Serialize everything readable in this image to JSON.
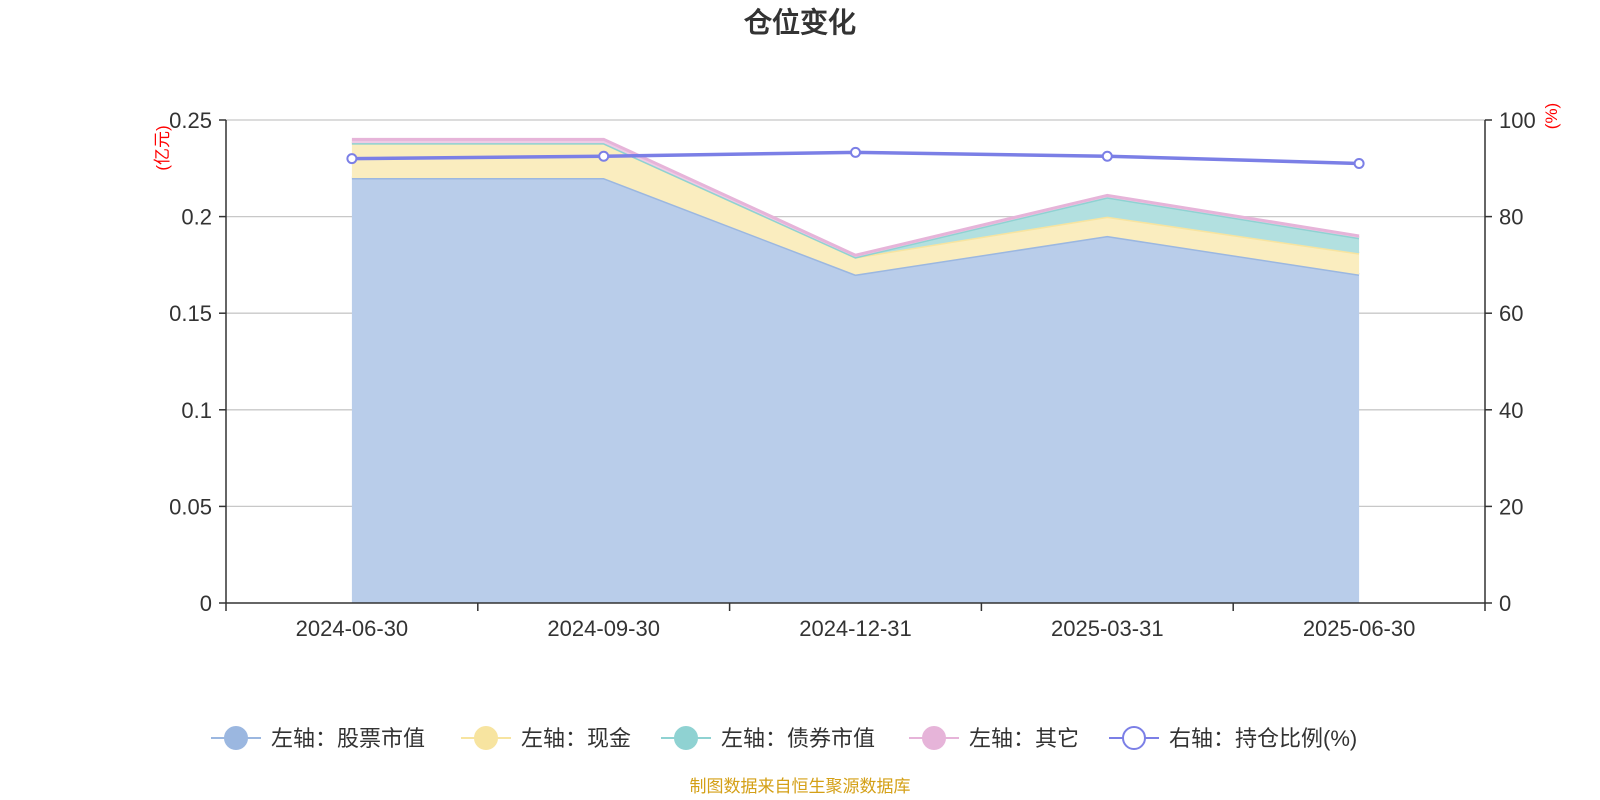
{
  "chart_data": {
    "type": "area",
    "title": "仓位变化",
    "categories": [
      "2024-06-30",
      "2024-09-30",
      "2024-12-31",
      "2025-03-31",
      "2025-06-30"
    ],
    "left_axis": {
      "unit_label": "(亿元)",
      "ylim": [
        0,
        0.25
      ],
      "tick_labels": [
        "0",
        "0.05",
        "0.1",
        "0.15",
        "0.2",
        "0.25"
      ]
    },
    "right_axis": {
      "unit_label": "(%)",
      "ylim": [
        0,
        100
      ],
      "tick_labels": [
        "0",
        "20",
        "40",
        "60",
        "80",
        "100"
      ]
    },
    "stacked_series": [
      {
        "name": "左轴：股票市值",
        "color": "#9bb7e0",
        "fill": "#b9cdea",
        "values": [
          0.22,
          0.22,
          0.17,
          0.19,
          0.17
        ]
      },
      {
        "name": "左轴：现金",
        "color": "#f7e4a0",
        "fill": "#faedbf",
        "values": [
          0.018,
          0.018,
          0.009,
          0.01,
          0.011
        ]
      },
      {
        "name": "左轴：债券市值",
        "color": "#8fd2d2",
        "fill": "#b2e0e0",
        "values": [
          0,
          0,
          0,
          0.01,
          0.008
        ]
      },
      {
        "name": "左轴：其它",
        "color": "#e6b4d9",
        "fill": "#efcbe5",
        "values": [
          0.002,
          0.002,
          0.001,
          0.001,
          0.001
        ]
      }
    ],
    "line_series": [
      {
        "name": "右轴：持仓比例(%)",
        "color": "#7b7fe6",
        "values": [
          92,
          92.5,
          93.3,
          92.5,
          91
        ]
      }
    ],
    "grid": true,
    "legend_position": "bottom"
  },
  "footer": {
    "source": "制图数据来自恒生聚源数据库"
  }
}
